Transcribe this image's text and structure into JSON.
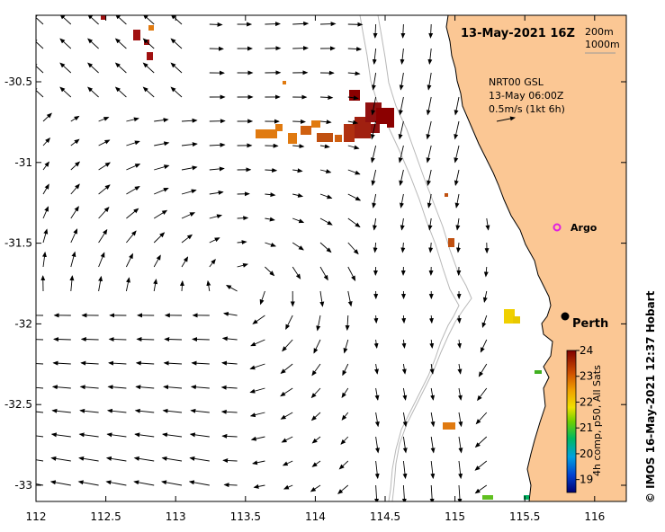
{
  "map": {
    "title": "13-May-2021 16Z",
    "depth_labels": [
      "200m",
      "1000m"
    ],
    "product_lines": [
      "NRT00 GSL",
      "13-May 06:00Z",
      "0.5m/s (1kt 6h)"
    ],
    "places": [
      {
        "name": "Argo",
        "lon": 115.78,
        "lat": -31.41,
        "marker": "magenta-circle"
      },
      {
        "name": "Perth",
        "lon": 115.86,
        "lat": -31.95,
        "marker": "black-dot"
      }
    ],
    "x_ticks": [
      "112",
      "112.5",
      "113",
      "113.5",
      "114",
      "114.5",
      "115",
      "115.5",
      "116"
    ],
    "y_ticks": [
      "-30.5",
      "-31",
      "-31.5",
      "-32",
      "-32.5",
      "-33"
    ],
    "lon_range": [
      112,
      116.3
    ],
    "lat_range": [
      -33.1,
      -30.05
    ],
    "colorbar": {
      "label": "4h comp, p50, All Sats",
      "ticks": [
        "24",
        "23",
        "22",
        "21",
        "20",
        "19"
      ],
      "range": [
        18.5,
        24
      ]
    },
    "credit": "© IMOS 16-May-2021 12:37 Hobart",
    "colors": {
      "land": "#fbc794",
      "coast": "#000000",
      "isobath": "#b8b8b8",
      "argo": "#e020e0"
    }
  }
}
